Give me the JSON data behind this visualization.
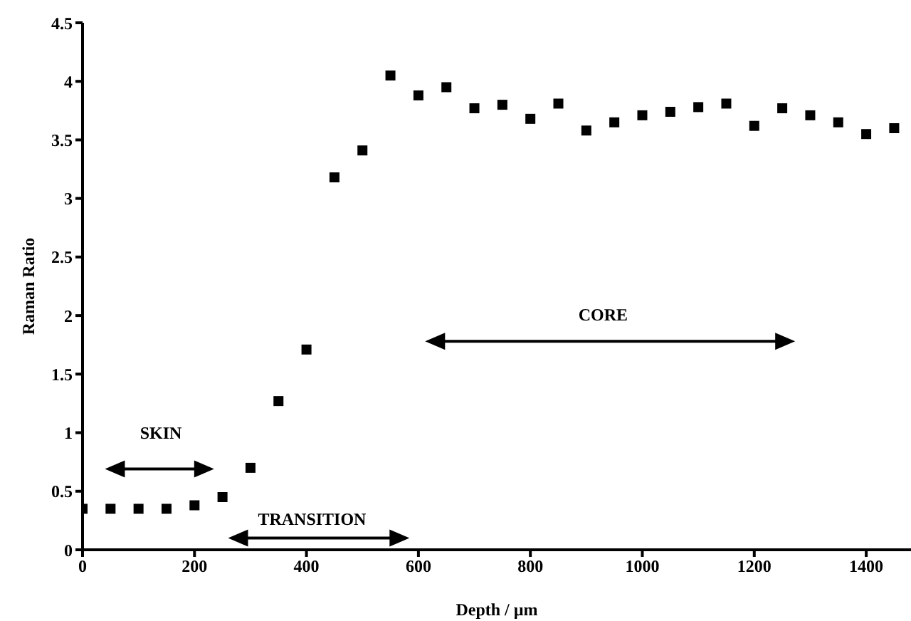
{
  "chart_data": {
    "type": "scatter",
    "xlabel": "Depth / µm",
    "ylabel": "Raman Ratio",
    "x": [
      0,
      50,
      100,
      150,
      200,
      250,
      300,
      350,
      400,
      450,
      500,
      550,
      600,
      650,
      700,
      750,
      800,
      850,
      900,
      950,
      1000,
      1050,
      1100,
      1150,
      1200,
      1250,
      1300,
      1350,
      1400,
      1450
    ],
    "series": [
      {
        "color": "#000000",
        "values": [
          0.35,
          0.35,
          0.35,
          0.35,
          0.38,
          0.45,
          0.7,
          1.27,
          1.71,
          3.18,
          3.41,
          4.05,
          3.88,
          3.95,
          3.77,
          3.8,
          3.68,
          3.81,
          3.58,
          3.65,
          3.71,
          3.74,
          3.78,
          3.81,
          3.62,
          3.77,
          3.71,
          3.65,
          3.55,
          3.6
        ]
      }
    ],
    "xlim": [
      0,
      1480
    ],
    "xticks": [
      0,
      200,
      400,
      600,
      800,
      1000,
      1200,
      1400
    ],
    "ylim": [
      0,
      4.5
    ],
    "yticks": [
      0,
      0.5,
      1,
      1.5,
      2,
      2.5,
      3,
      3.5,
      4,
      4.5
    ],
    "marker": "square",
    "grid": false,
    "legend": false,
    "annotations": [
      "SKIN",
      "TRANSITION",
      "CORE"
    ]
  }
}
